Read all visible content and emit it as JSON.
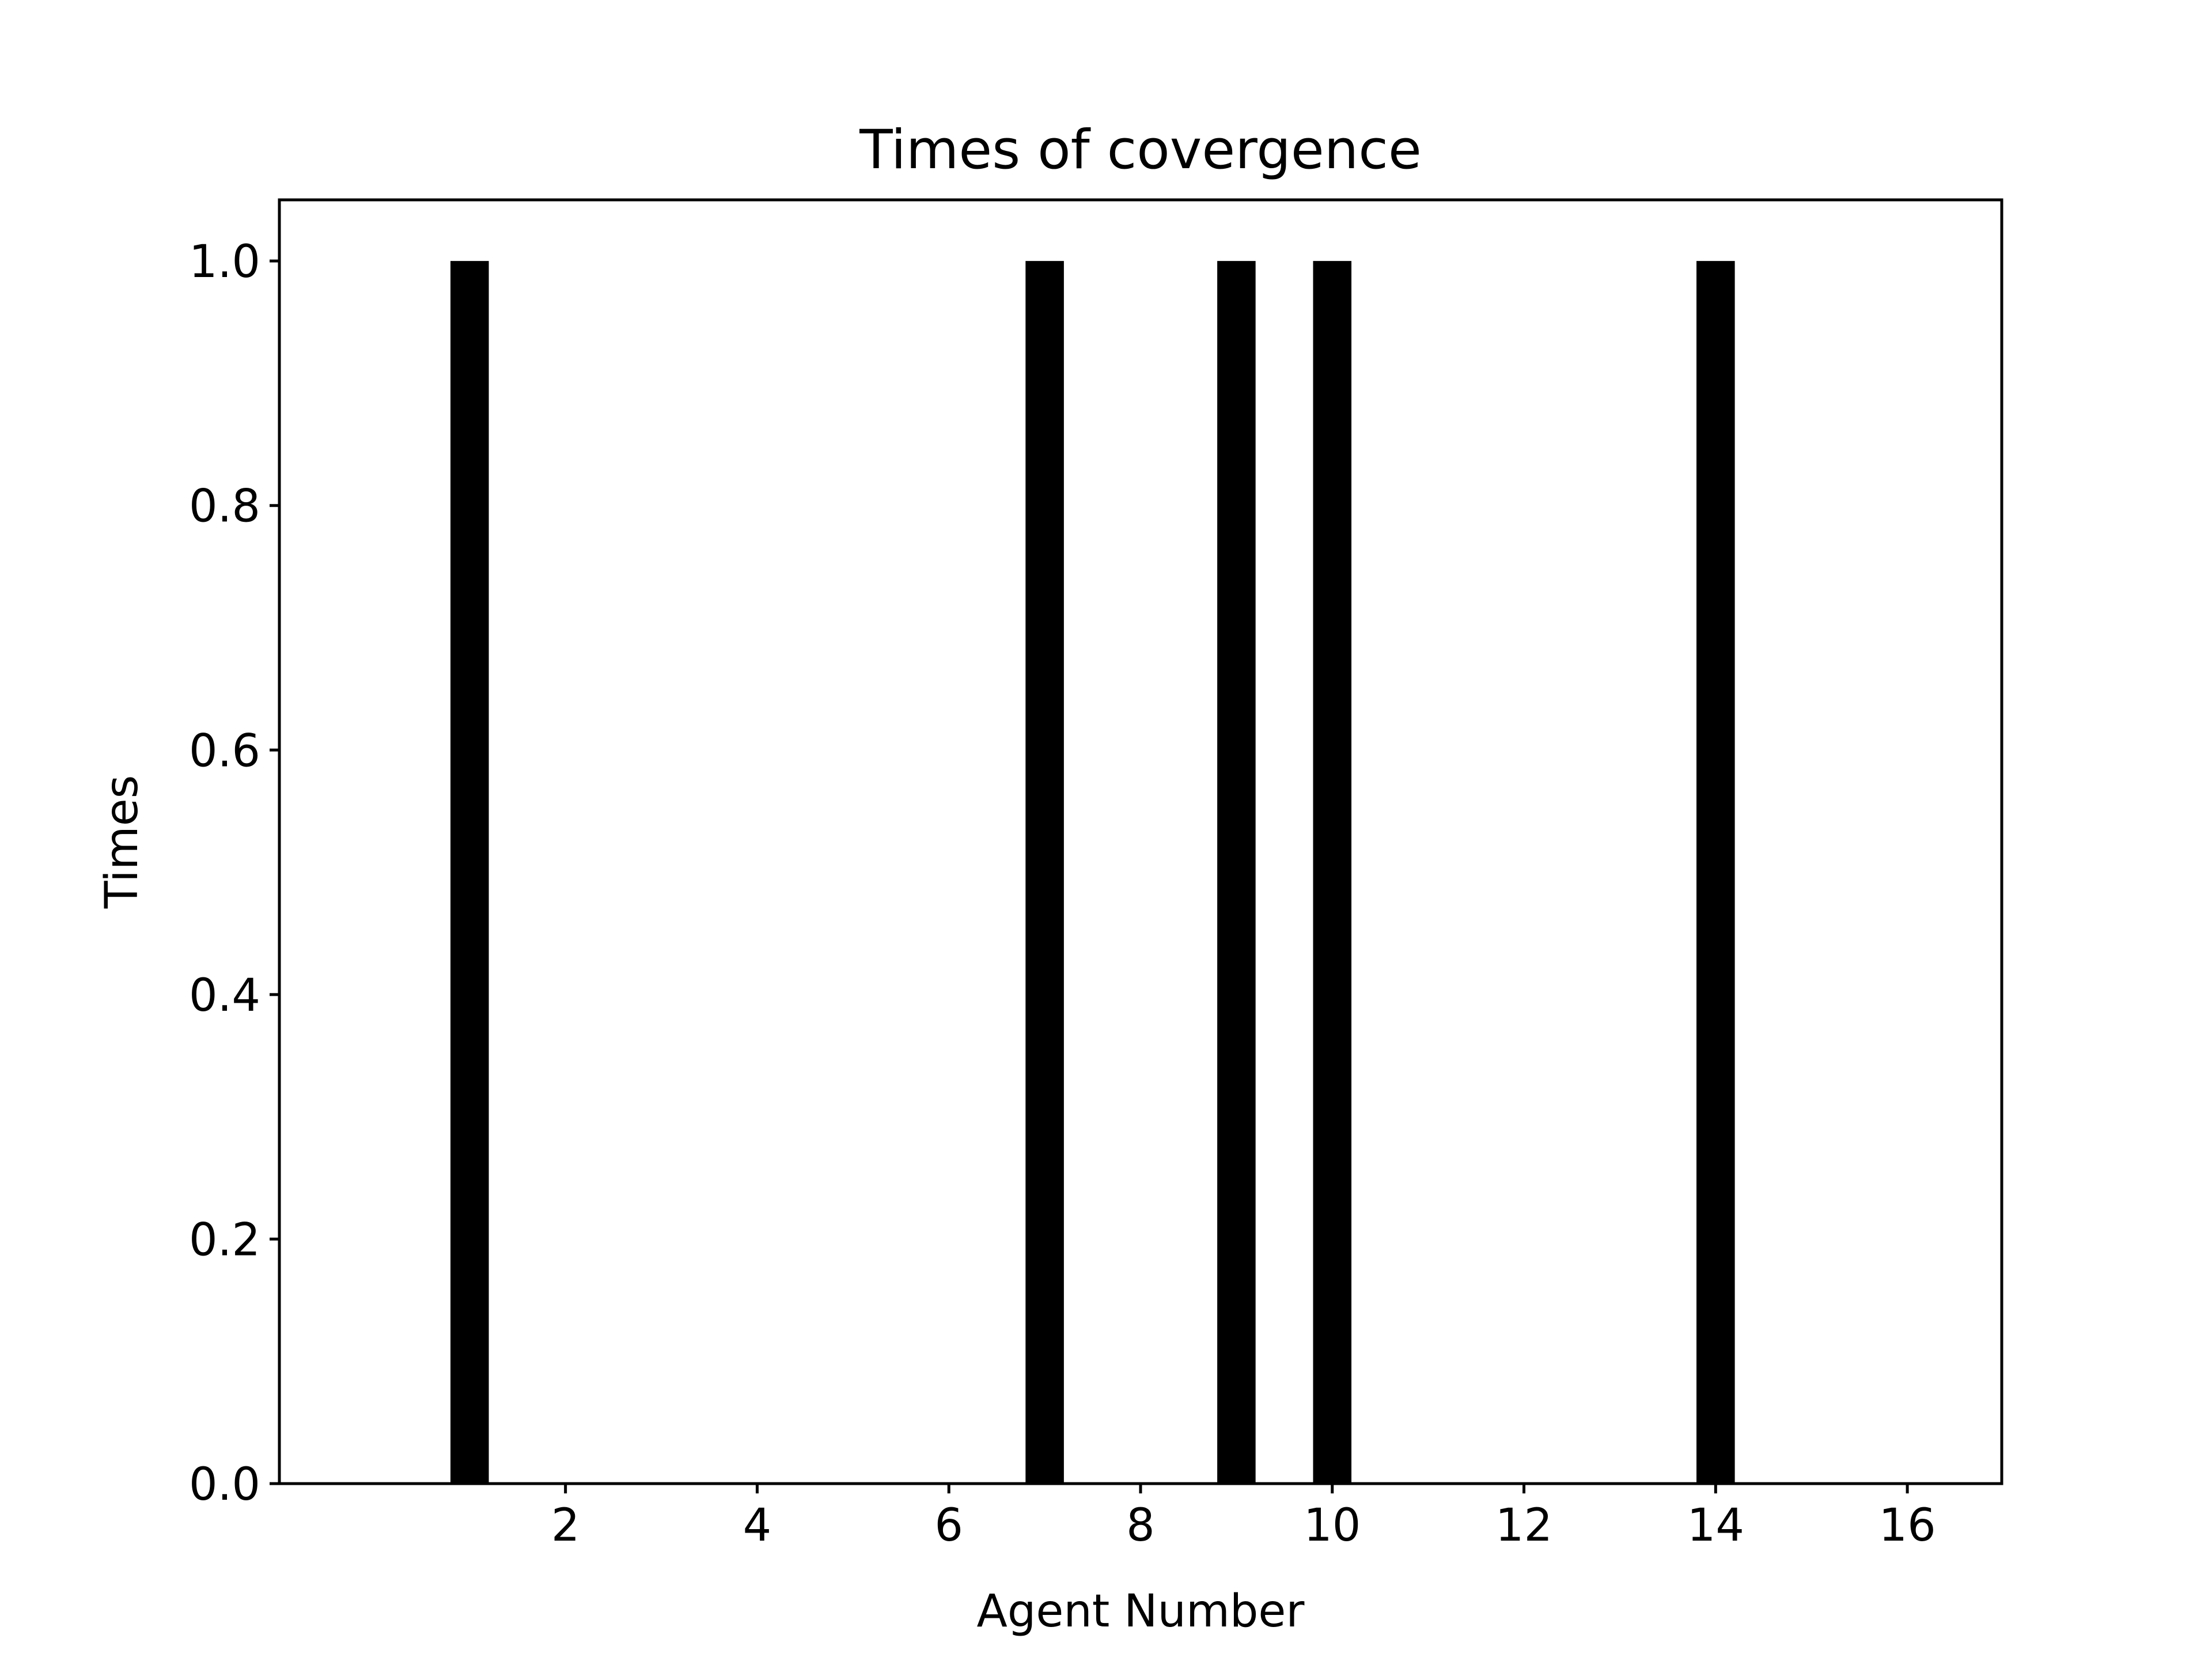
{
  "chart_data": {
    "type": "bar",
    "title": "Times of covergence",
    "xlabel": "Agent Number",
    "ylabel": "Times",
    "x": [
      1,
      7,
      9,
      10,
      14
    ],
    "values": [
      1.0,
      1.0,
      1.0,
      1.0,
      1.0
    ],
    "bar_width": 0.4,
    "xlim": [
      -0.985,
      16.985
    ],
    "ylim": [
      0.0,
      1.05
    ],
    "xticks": [
      2,
      4,
      6,
      8,
      10,
      12,
      14,
      16
    ],
    "xtick_labels": [
      "2",
      "4",
      "6",
      "8",
      "10",
      "12",
      "14",
      "16"
    ],
    "yticks": [
      0.0,
      0.2,
      0.4,
      0.6,
      0.8,
      1.0
    ],
    "ytick_labels": [
      "0.0",
      "0.2",
      "0.4",
      "0.6",
      "0.8",
      "1.0"
    ],
    "grid": false,
    "legend": "none",
    "colors": {
      "bar": "#000000",
      "axes": "#000000",
      "background": "#ffffff"
    }
  }
}
